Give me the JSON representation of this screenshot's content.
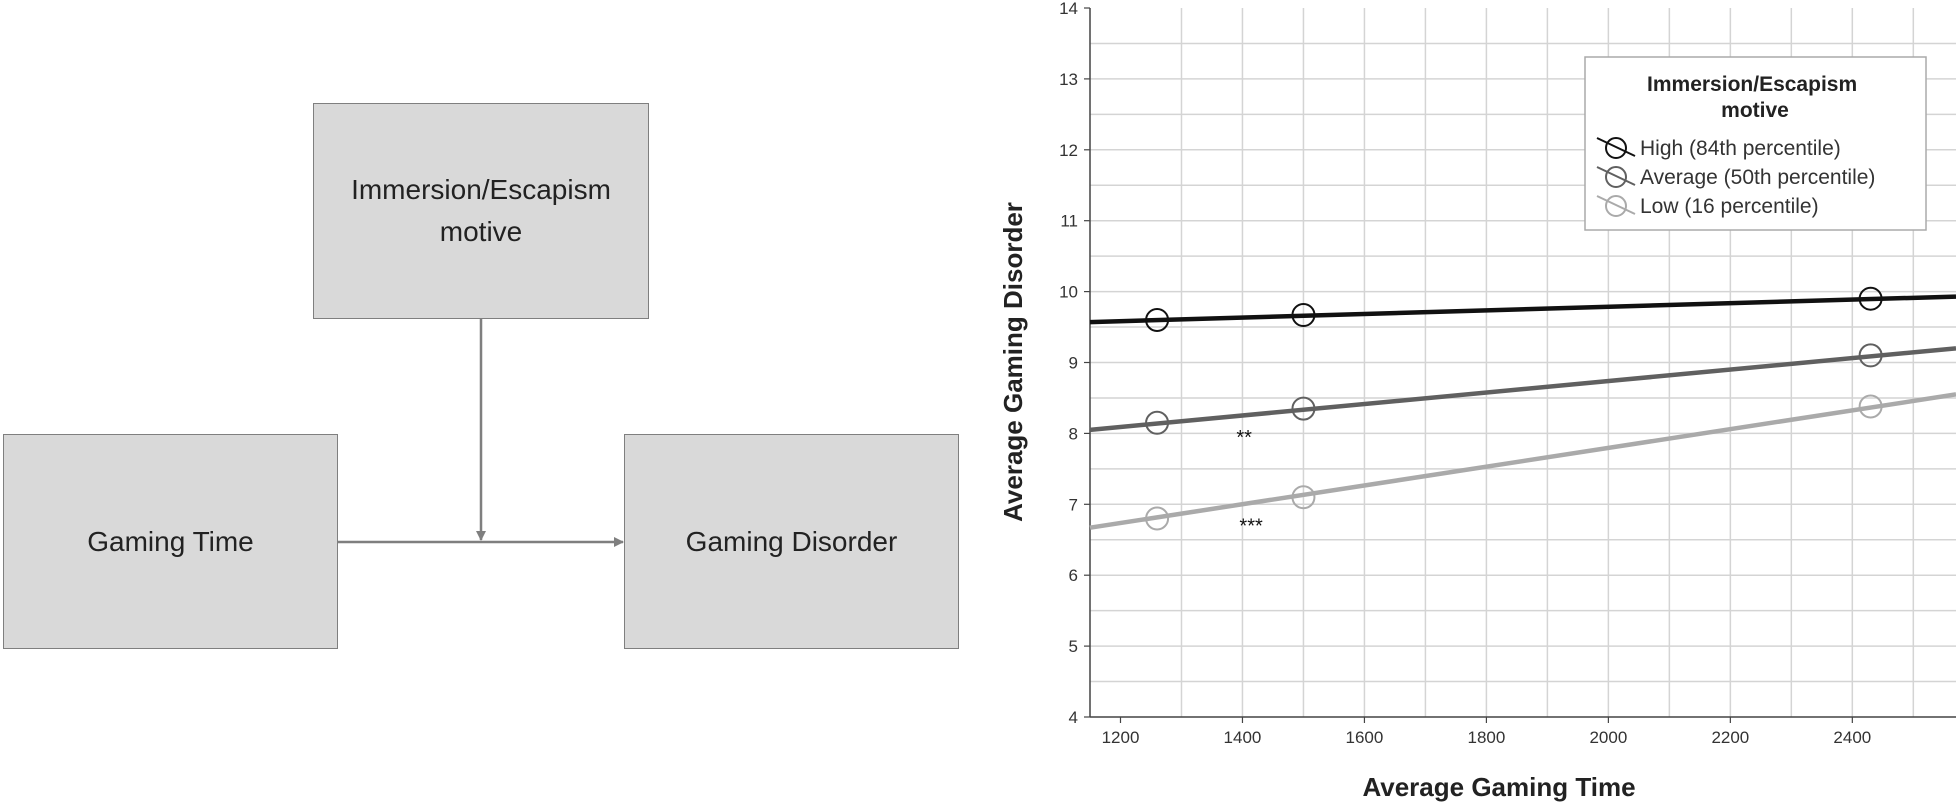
{
  "diagram": {
    "moderator": "Immersion/Escapism motive",
    "predictor": "Gaming Time",
    "outcome": "Gaming Disorder"
  },
  "chart_data": {
    "type": "line",
    "xlabel": "Average Gaming Time",
    "ylabel": "Average Gaming Disorder",
    "xlim": [
      1150,
      2570
    ],
    "ylim": [
      4,
      14
    ],
    "x_ticks": [
      1200,
      1400,
      1600,
      1800,
      2000,
      2200,
      2400
    ],
    "y_ticks": [
      4,
      5,
      6,
      7,
      8,
      9,
      10,
      11,
      12,
      13,
      14
    ],
    "grid": true,
    "legend": {
      "title": "Immersion/Escapism motive",
      "placement": "top-right"
    },
    "series": [
      {
        "name": "High (84th percentile)",
        "color": "#111111",
        "line": [
          [
            1150,
            9.57
          ],
          [
            2570,
            9.93
          ]
        ],
        "points": [
          [
            1260,
            9.6
          ],
          [
            1500,
            9.67
          ],
          [
            2430,
            9.9
          ]
        ]
      },
      {
        "name": "Average (50th percentile)",
        "color": "#606060",
        "line": [
          [
            1150,
            8.05
          ],
          [
            2570,
            9.2
          ]
        ],
        "points": [
          [
            1260,
            8.15
          ],
          [
            1500,
            8.35
          ],
          [
            2430,
            9.1
          ]
        ]
      },
      {
        "name": "Low (16 percentile)",
        "color": "#aaaaaa",
        "line": [
          [
            1150,
            6.67
          ],
          [
            2570,
            8.55
          ]
        ],
        "points": [
          [
            1260,
            6.8
          ],
          [
            1500,
            7.1
          ],
          [
            2430,
            8.38
          ]
        ]
      }
    ],
    "annotations": [
      {
        "text": "**",
        "x": 1390,
        "y": 7.85
      },
      {
        "text": "***",
        "x": 1395,
        "y": 6.6
      }
    ]
  }
}
